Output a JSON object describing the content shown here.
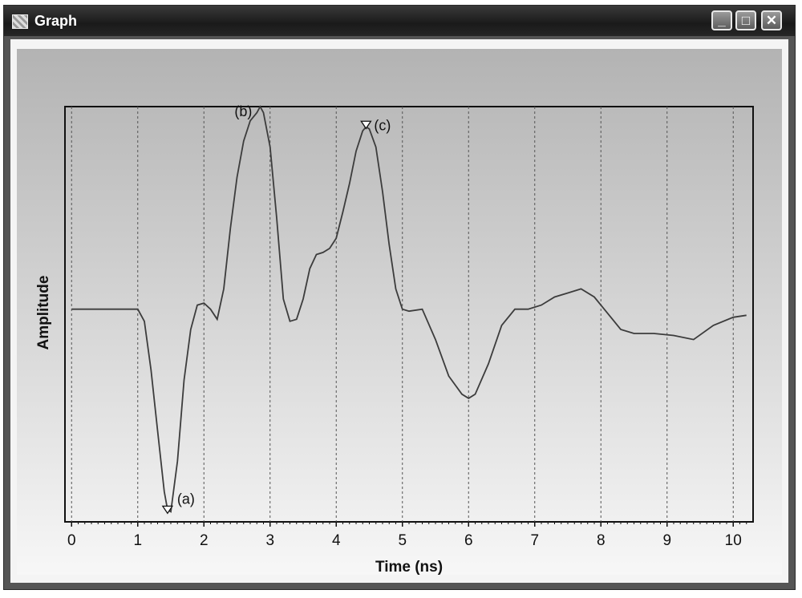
{
  "window": {
    "title": "Graph",
    "buttons": {
      "minimize": "_",
      "maximize": "□",
      "close": "✕"
    }
  },
  "chart_data": {
    "type": "line",
    "title": "",
    "xlabel": "Time (ns)",
    "ylabel": "Amplitude",
    "xlim": [
      -0.1,
      10.3
    ],
    "ylim": [
      -1.05,
      1.0
    ],
    "xticks": [
      0,
      1,
      2,
      3,
      4,
      5,
      6,
      7,
      8,
      9,
      10
    ],
    "grid": "vertical dashed",
    "series": [
      {
        "x": [
          0,
          0.3,
          0.6,
          0.9,
          1.0,
          1.1,
          1.2,
          1.3,
          1.4,
          1.45,
          1.5,
          1.6,
          1.7,
          1.8,
          1.9,
          2.0,
          2.1,
          2.2,
          2.3,
          2.4,
          2.5,
          2.6,
          2.7,
          2.8,
          2.85,
          2.9,
          3.0,
          3.1,
          3.2,
          3.3,
          3.4,
          3.5,
          3.6,
          3.7,
          3.8,
          3.9,
          4.0,
          4.1,
          4.2,
          4.3,
          4.4,
          4.45,
          4.5,
          4.6,
          4.7,
          4.8,
          4.9,
          5.0,
          5.1,
          5.3,
          5.5,
          5.7,
          5.9,
          6.0,
          6.1,
          6.3,
          6.5,
          6.7,
          6.9,
          7.1,
          7.3,
          7.5,
          7.7,
          7.9,
          8.1,
          8.3,
          8.5,
          8.8,
          9.1,
          9.4,
          9.7,
          10.0,
          10.2
        ],
        "y": [
          0.0,
          0.0,
          0.0,
          0.0,
          0.0,
          -0.06,
          -0.3,
          -0.6,
          -0.9,
          -0.99,
          -1.0,
          -0.75,
          -0.35,
          -0.1,
          0.02,
          0.03,
          0.0,
          -0.05,
          0.1,
          0.4,
          0.65,
          0.83,
          0.93,
          0.97,
          1.0,
          0.97,
          0.8,
          0.45,
          0.05,
          -0.06,
          -0.05,
          0.05,
          0.2,
          0.27,
          0.28,
          0.3,
          0.35,
          0.48,
          0.62,
          0.78,
          0.88,
          0.9,
          0.89,
          0.8,
          0.58,
          0.32,
          0.1,
          0.0,
          -0.01,
          0.0,
          -0.15,
          -0.33,
          -0.42,
          -0.44,
          -0.42,
          -0.27,
          -0.08,
          0.0,
          0.0,
          0.02,
          0.06,
          0.08,
          0.1,
          0.06,
          -0.02,
          -0.1,
          -0.12,
          -0.12,
          -0.13,
          -0.15,
          -0.08,
          -0.04,
          -0.03
        ]
      }
    ],
    "annotations": [
      {
        "label": "(a)",
        "x": 1.45,
        "y": -1.0,
        "marker": "triangle-down"
      },
      {
        "label": "(b)",
        "x": 2.85,
        "y": 1.0
      },
      {
        "label": "(c)",
        "x": 4.45,
        "y": 0.9,
        "marker": "triangle-down"
      }
    ]
  }
}
